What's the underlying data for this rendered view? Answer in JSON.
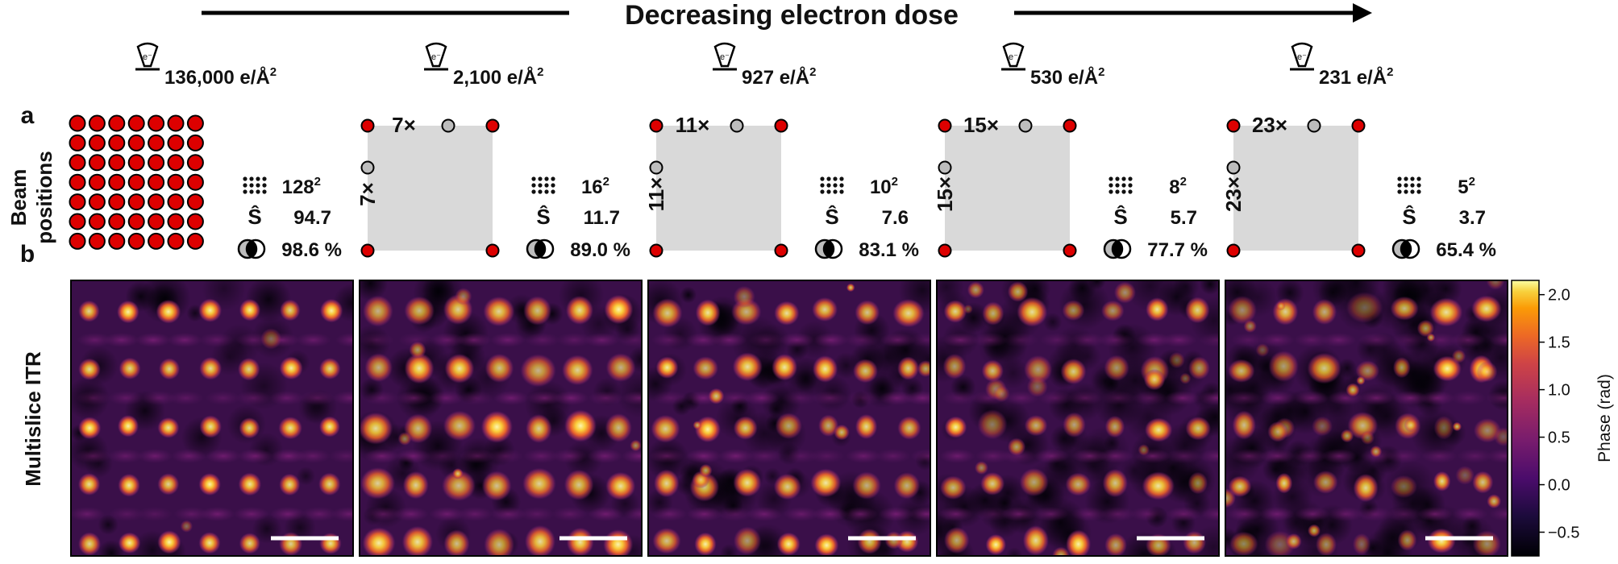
{
  "header": {
    "title": "Decreasing electron dose"
  },
  "row_a": {
    "label": "a",
    "title_line1": "Beam",
    "title_line2": "positions"
  },
  "row_b": {
    "label": "b",
    "title": "Multislice ITR"
  },
  "columns": [
    {
      "dose": "136,000 e/Å",
      "dose_exp": "2",
      "subsample": "",
      "grid_base": "128",
      "grid_exp": "2",
      "s_hat": "94.7",
      "overlap": "98.6 %",
      "full_grid_count": 7
    },
    {
      "dose": "2,100 e/Å",
      "dose_exp": "2",
      "subsample": "7×",
      "grid_base": "16",
      "grid_exp": "2",
      "s_hat": "11.7",
      "overlap": "89.0 %"
    },
    {
      "dose": "927 e/Å",
      "dose_exp": "2",
      "subsample": "11×",
      "grid_base": "10",
      "grid_exp": "2",
      "s_hat": "7.6",
      "overlap": "83.1 %"
    },
    {
      "dose": "530 e/Å",
      "dose_exp": "2",
      "subsample": "15×",
      "grid_base": "8",
      "grid_exp": "2",
      "s_hat": "5.7",
      "overlap": "77.7 %"
    },
    {
      "dose": "231 e/Å",
      "dose_exp": "2",
      "subsample": "23×",
      "grid_base": "5",
      "grid_exp": "2",
      "s_hat": "3.7",
      "overlap": "65.4 %"
    }
  ],
  "s_hat_symbol": "Ŝ",
  "colorbar": {
    "label": "Phase (rad)",
    "ticks": [
      "2.0",
      "1.5",
      "1.0",
      "0.5",
      "0.0",
      "−0.5"
    ],
    "tick_values": [
      2.0,
      1.5,
      1.0,
      0.5,
      0.0,
      -0.5
    ],
    "range": [
      -0.75,
      2.15
    ],
    "colormap": [
      "#000004",
      "#2a0a4c",
      "#6a1b6e",
      "#a82f62",
      "#dd513a",
      "#f98c0a",
      "#fbcc39",
      "#fcffa4"
    ]
  },
  "colors": {
    "beam_fill": "#dd0000",
    "skipped_fill": "#bdbdbd",
    "scan_area": "#d9d9d9",
    "map_background": "#3a0f49",
    "blob_core": "#fcf6b0"
  }
}
